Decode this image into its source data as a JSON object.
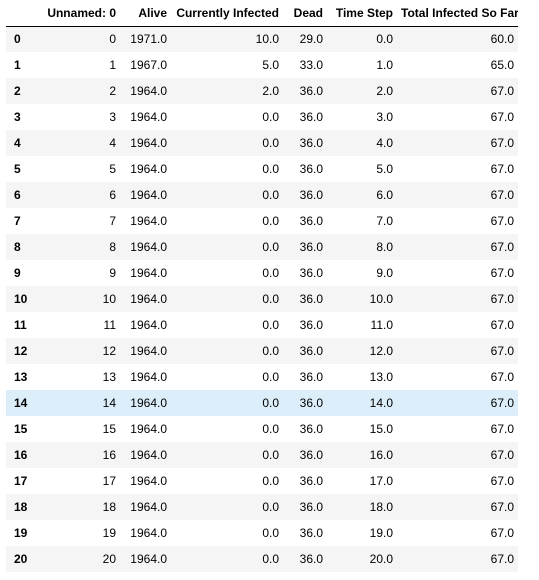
{
  "table": {
    "columns": [
      "",
      "Unnamed: 0",
      "Alive",
      "Currently Infected",
      "Dead",
      "Time Step",
      "Total Infected So Far"
    ],
    "highlighted_row": 14,
    "rows": [
      [
        "0",
        "0",
        "1971.0",
        "10.0",
        "29.0",
        "0.0",
        "60.0"
      ],
      [
        "1",
        "1",
        "1967.0",
        "5.0",
        "33.0",
        "1.0",
        "65.0"
      ],
      [
        "2",
        "2",
        "1964.0",
        "2.0",
        "36.0",
        "2.0",
        "67.0"
      ],
      [
        "3",
        "3",
        "1964.0",
        "0.0",
        "36.0",
        "3.0",
        "67.0"
      ],
      [
        "4",
        "4",
        "1964.0",
        "0.0",
        "36.0",
        "4.0",
        "67.0"
      ],
      [
        "5",
        "5",
        "1964.0",
        "0.0",
        "36.0",
        "5.0",
        "67.0"
      ],
      [
        "6",
        "6",
        "1964.0",
        "0.0",
        "36.0",
        "6.0",
        "67.0"
      ],
      [
        "7",
        "7",
        "1964.0",
        "0.0",
        "36.0",
        "7.0",
        "67.0"
      ],
      [
        "8",
        "8",
        "1964.0",
        "0.0",
        "36.0",
        "8.0",
        "67.0"
      ],
      [
        "9",
        "9",
        "1964.0",
        "0.0",
        "36.0",
        "9.0",
        "67.0"
      ],
      [
        "10",
        "10",
        "1964.0",
        "0.0",
        "36.0",
        "10.0",
        "67.0"
      ],
      [
        "11",
        "11",
        "1964.0",
        "0.0",
        "36.0",
        "11.0",
        "67.0"
      ],
      [
        "12",
        "12",
        "1964.0",
        "0.0",
        "36.0",
        "12.0",
        "67.0"
      ],
      [
        "13",
        "13",
        "1964.0",
        "0.0",
        "36.0",
        "13.0",
        "67.0"
      ],
      [
        "14",
        "14",
        "1964.0",
        "0.0",
        "36.0",
        "14.0",
        "67.0"
      ],
      [
        "15",
        "15",
        "1964.0",
        "0.0",
        "36.0",
        "15.0",
        "67.0"
      ],
      [
        "16",
        "16",
        "1964.0",
        "0.0",
        "36.0",
        "16.0",
        "67.0"
      ],
      [
        "17",
        "17",
        "1964.0",
        "0.0",
        "36.0",
        "17.0",
        "67.0"
      ],
      [
        "18",
        "18",
        "1964.0",
        "0.0",
        "36.0",
        "18.0",
        "67.0"
      ],
      [
        "19",
        "19",
        "1964.0",
        "0.0",
        "36.0",
        "19.0",
        "67.0"
      ],
      [
        "20",
        "20",
        "1964.0",
        "0.0",
        "36.0",
        "20.0",
        "67.0"
      ]
    ]
  },
  "colors": {
    "stripe": "#f5f5f5",
    "hover": "#ddeefb",
    "header_rule": "#000000"
  }
}
